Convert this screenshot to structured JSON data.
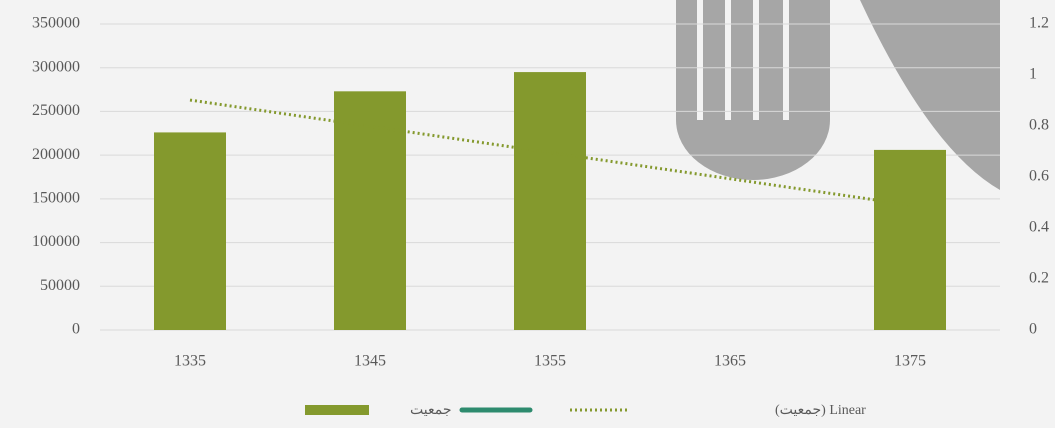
{
  "chart_data": {
    "type": "bar",
    "categories": [
      "1335",
      "1345",
      "1355",
      "1365",
      "1375"
    ],
    "series": [
      {
        "name": "جمعیت",
        "color": "#84992d",
        "values": [
          226000,
          273000,
          295000,
          null,
          206000
        ]
      },
      {
        "color": "#2e8b6e",
        "axis": "y2",
        "values": [
          null,
          null,
          null,
          null,
          null
        ]
      }
    ],
    "trendline": {
      "name": "Linear (جمعیت)",
      "color": "#84992d",
      "values": [
        263000,
        233000,
        203000,
        173000,
        143000
      ]
    },
    "ylim": [
      0,
      350000
    ],
    "yticks": [
      0,
      50000,
      100000,
      150000,
      200000,
      250000,
      300000,
      350000
    ],
    "y2lim": [
      0,
      1.2
    ],
    "y2ticks": [
      0,
      0.2,
      0.4,
      0.6,
      0.8,
      1,
      1.2
    ],
    "grid": true
  }
}
